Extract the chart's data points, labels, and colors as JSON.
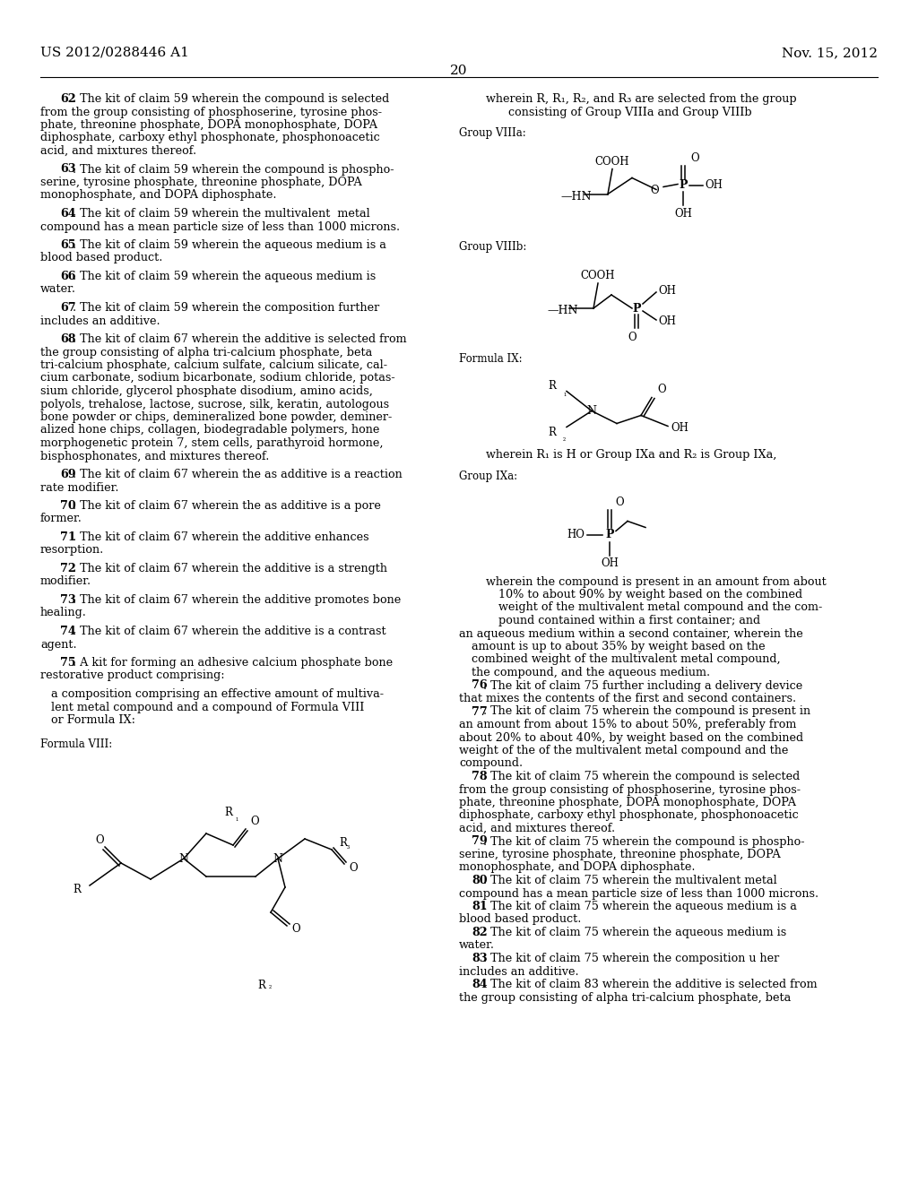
{
  "header_left": "US 2012/0288446 A1",
  "header_right": "Nov. 15, 2012",
  "page_number": "20",
  "bg_color": "#ffffff",
  "text_color": "#000000"
}
